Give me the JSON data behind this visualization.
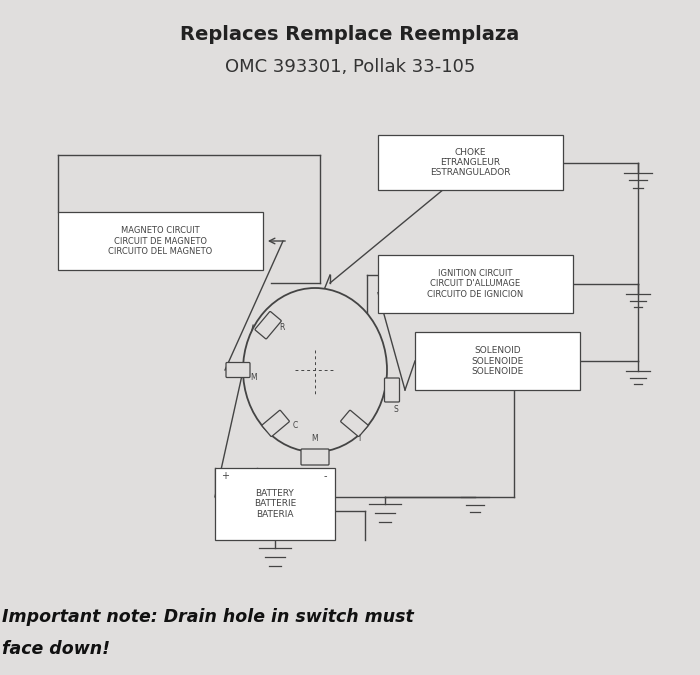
{
  "title_line1": "Replaces Remplace Reemplaza",
  "title_line2": "OMC 393301, Pollak 33-105",
  "bg_color": "#e0dedd",
  "line_color": "#444444",
  "text_color": "#444444",
  "note_line1": "Important note: Drain hole in switch must",
  "note_line2": "face down!"
}
